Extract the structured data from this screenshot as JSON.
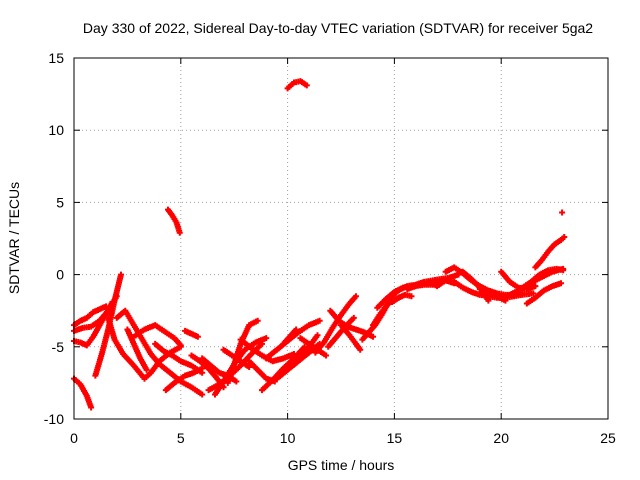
{
  "chart_data": {
    "type": "scatter",
    "title": "Day 330 of 2022, Sidereal Day-to-day VTEC variation (SDTVAR) for receiver 5ga2",
    "xlabel": "GPS time / hours",
    "ylabel": "SDTVAR / TECUs",
    "xlim": [
      0,
      25
    ],
    "ylim": [
      -10,
      15
    ],
    "xticks": [
      0,
      5,
      10,
      15,
      20,
      25
    ],
    "yticks": [
      -10,
      -5,
      0,
      5,
      10,
      15
    ],
    "grid": true,
    "marker": "+",
    "color": "#ff0000",
    "segments": [
      {
        "x": [
          0.0,
          0.3,
          0.6,
          0.8
        ],
        "y": [
          -7.2,
          -7.6,
          -8.4,
          -9.2
        ]
      },
      {
        "x": [
          0.0,
          0.3,
          0.6,
          0.9,
          1.2,
          1.5
        ],
        "y": [
          -3.5,
          -3.2,
          -3.0,
          -2.6,
          -2.4,
          -2.2
        ]
      },
      {
        "x": [
          0.0,
          0.3,
          0.6,
          0.9,
          1.2,
          1.5,
          1.8
        ],
        "y": [
          -4.6,
          -4.7,
          -4.9,
          -4.3,
          -3.5,
          -2.7,
          -1.9
        ]
      },
      {
        "x": [
          0.0,
          0.4,
          0.8,
          1.2,
          1.6,
          2.0
        ],
        "y": [
          -3.9,
          -3.7,
          -3.6,
          -3.2,
          -2.5,
          -1.5
        ]
      },
      {
        "x": [
          1.0,
          1.3,
          1.6,
          1.9,
          2.2
        ],
        "y": [
          -7.0,
          -5.5,
          -3.8,
          -1.8,
          0.0
        ]
      },
      {
        "x": [
          1.6,
          1.9,
          2.3,
          2.8,
          3.3
        ],
        "y": [
          -3.0,
          -4.5,
          -5.5,
          -6.3,
          -7.2
        ]
      },
      {
        "x": [
          2.0,
          2.4,
          2.8,
          3.2,
          3.6,
          4.0,
          4.5,
          5.0,
          5.5,
          6.0
        ],
        "y": [
          -3.0,
          -2.5,
          -3.5,
          -4.5,
          -5.5,
          -6.2,
          -6.8,
          -7.4,
          -7.8,
          -8.3
        ]
      },
      {
        "x": [
          2.5,
          2.8,
          3.1,
          3.4
        ],
        "y": [
          -3.8,
          -4.8,
          -5.8,
          -6.6
        ]
      },
      {
        "x": [
          2.8,
          3.3,
          3.8,
          4.2,
          4.7,
          5.0
        ],
        "y": [
          -4.3,
          -3.8,
          -3.5,
          -3.9,
          -4.4,
          -4.9
        ]
      },
      {
        "x": [
          3.3,
          3.6,
          4.0,
          4.5,
          5.0
        ],
        "y": [
          -7.2,
          -6.8,
          -6.0,
          -5.4,
          -5.0
        ]
      },
      {
        "x": [
          3.8,
          4.2,
          4.6,
          5.0,
          5.5,
          6.0
        ],
        "y": [
          -4.8,
          -5.3,
          -5.6,
          -6.0,
          -6.3,
          -6.8
        ]
      },
      {
        "x": [
          4.4,
          4.6,
          4.8,
          4.95
        ],
        "y": [
          4.5,
          4.1,
          3.6,
          2.9
        ]
      },
      {
        "x": [
          4.3,
          4.7,
          5.2,
          5.6,
          6.0
        ],
        "y": [
          -8.0,
          -7.5,
          -7.0,
          -6.8,
          -6.5
        ]
      },
      {
        "x": [
          5.2,
          5.5,
          5.8
        ],
        "y": [
          -3.9,
          -4.1,
          -4.3
        ]
      },
      {
        "x": [
          5.5,
          5.9,
          6.3,
          6.7,
          7.0
        ],
        "y": [
          -5.6,
          -6.0,
          -6.5,
          -7.2,
          -7.8
        ]
      },
      {
        "x": [
          6.0,
          6.4,
          6.8,
          7.2,
          7.6
        ],
        "y": [
          -5.8,
          -6.3,
          -6.8,
          -7.0,
          -7.4
        ]
      },
      {
        "x": [
          6.3,
          6.8,
          7.3,
          7.8,
          8.3,
          8.8
        ],
        "y": [
          -8.0,
          -7.6,
          -7.0,
          -6.3,
          -5.5,
          -4.8
        ]
      },
      {
        "x": [
          6.6,
          7.0,
          7.5,
          8.0,
          8.5,
          9.0
        ],
        "y": [
          -8.3,
          -7.4,
          -6.2,
          -5.2,
          -4.7,
          -4.4
        ]
      },
      {
        "x": [
          7.0,
          7.4,
          7.8,
          8.2
        ],
        "y": [
          -5.2,
          -5.6,
          -6.0,
          -6.4
        ]
      },
      {
        "x": [
          7.2,
          7.5,
          7.8,
          8.2,
          8.6
        ],
        "y": [
          -7.5,
          -6.2,
          -4.8,
          -3.5,
          -3.2
        ]
      },
      {
        "x": [
          7.8,
          8.3,
          8.8,
          9.3,
          9.8,
          10.3
        ],
        "y": [
          -4.5,
          -5.1,
          -5.6,
          -6.0,
          -5.8,
          -5.5
        ]
      },
      {
        "x": [
          8.2,
          8.6,
          9.0,
          9.4
        ],
        "y": [
          -6.0,
          -6.6,
          -7.2,
          -7.4
        ]
      },
      {
        "x": [
          8.8,
          9.3,
          9.8,
          10.3,
          10.8
        ],
        "y": [
          -8.0,
          -7.3,
          -6.5,
          -5.8,
          -5.0
        ]
      },
      {
        "x": [
          9.0,
          9.5,
          10.0,
          10.5,
          11.0,
          11.5
        ],
        "y": [
          -5.8,
          -5.2,
          -4.6,
          -4.0,
          -3.5,
          -3.2
        ]
      },
      {
        "x": [
          9.5,
          10.0,
          10.5,
          11.0,
          11.5
        ],
        "y": [
          -7.2,
          -6.6,
          -6.0,
          -5.4,
          -4.8
        ]
      },
      {
        "x": [
          9.8,
          10.1,
          10.4
        ],
        "y": [
          -4.8,
          -4.3,
          -3.8
        ]
      },
      {
        "x": [
          10.2,
          10.6,
          11.0,
          11.4
        ],
        "y": [
          -6.2,
          -5.6,
          -5.0,
          -4.2
        ]
      },
      {
        "x": [
          10.0,
          10.3,
          10.6,
          10.9
        ],
        "y": [
          12.9,
          13.3,
          13.4,
          13.1
        ]
      },
      {
        "x": [
          10.6,
          11.0,
          11.4,
          11.8
        ],
        "y": [
          -4.4,
          -4.8,
          -5.2,
          -5.6
        ]
      },
      {
        "x": [
          11.3,
          11.7,
          12.1,
          12.5,
          12.9,
          13.2
        ],
        "y": [
          -5.4,
          -4.7,
          -3.7,
          -2.8,
          -2.0,
          -1.5
        ]
      },
      {
        "x": [
          11.9,
          12.3,
          12.7,
          13.1
        ],
        "y": [
          -5.0,
          -4.3,
          -3.6,
          -3.0
        ]
      },
      {
        "x": [
          12.0,
          12.4,
          12.8,
          13.2,
          13.6,
          14.0
        ],
        "y": [
          -2.5,
          -3.2,
          -3.6,
          -3.8,
          -4.0,
          -4.3
        ]
      },
      {
        "x": [
          12.5,
          12.9,
          13.2,
          13.4
        ],
        "y": [
          -3.5,
          -4.2,
          -4.8,
          -5.2
        ]
      },
      {
        "x": [
          13.5,
          13.8,
          14.1,
          14.4,
          14.7,
          15.0,
          15.3,
          15.6,
          16.0,
          16.4,
          16.8,
          17.2,
          17.6,
          18.0
        ],
        "y": [
          -4.5,
          -4.0,
          -3.5,
          -2.8,
          -2.0,
          -1.3,
          -1.0,
          -0.8,
          -0.7,
          -0.5,
          -0.4,
          -0.3,
          -0.2,
          0.0
        ]
      },
      {
        "x": [
          14.2,
          14.6,
          15.0,
          15.4,
          15.8,
          16.2,
          16.6,
          17.0,
          17.5
        ],
        "y": [
          -2.3,
          -1.7,
          -1.2,
          -0.9,
          -0.8,
          -0.7,
          -0.6,
          -0.5,
          -0.4
        ]
      },
      {
        "x": [
          14.0,
          14.3,
          14.6,
          14.9,
          15.2
        ],
        "y": [
          -3.5,
          -2.8,
          -2.2,
          -1.8,
          -1.6
        ]
      },
      {
        "x": [
          14.9,
          15.2,
          15.5,
          15.8
        ],
        "y": [
          -1.9,
          -1.6,
          -1.4,
          -1.5
        ]
      },
      {
        "x": [
          15.6,
          16.0,
          16.4,
          16.8
        ],
        "y": [
          -1.0,
          -0.8,
          -0.7,
          -0.7
        ]
      },
      {
        "x": [
          16.6,
          17.0,
          17.4,
          17.8
        ],
        "y": [
          -0.5,
          -0.8,
          -0.4,
          -0.6
        ]
      },
      {
        "x": [
          17.4,
          17.8,
          18.2,
          18.6,
          19.0,
          19.4,
          19.8,
          20.2,
          20.6,
          21.0
        ],
        "y": [
          0.2,
          0.5,
          0.1,
          -0.4,
          -0.8,
          -1.1,
          -1.3,
          -1.4,
          -1.4,
          -1.3
        ]
      },
      {
        "x": [
          17.8,
          18.2,
          18.6,
          19.0,
          19.4,
          19.8,
          20.2,
          20.6,
          21.0,
          21.5
        ],
        "y": [
          -0.5,
          -0.9,
          -1.2,
          -1.4,
          -1.5,
          -1.6,
          -1.6,
          -1.5,
          -1.4,
          -1.3
        ]
      },
      {
        "x": [
          18.2,
          18.6,
          19.0,
          19.4
        ],
        "y": [
          0.2,
          -0.3,
          -0.9,
          -1.8
        ]
      },
      {
        "x": [
          19.0,
          19.4,
          19.8,
          20.2
        ],
        "y": [
          -1.0,
          -1.2,
          -1.5,
          -1.8
        ]
      },
      {
        "x": [
          20.0,
          20.4,
          20.8,
          21.2,
          21.6
        ],
        "y": [
          0.2,
          -0.5,
          -0.9,
          -1.0,
          -0.8
        ]
      },
      {
        "x": [
          20.4,
          20.8,
          21.2,
          21.6,
          22.0,
          22.4,
          22.9
        ],
        "y": [
          -1.4,
          -1.1,
          -0.8,
          -0.4,
          -0.1,
          0.2,
          0.4
        ]
      },
      {
        "x": [
          21.0,
          21.4,
          21.8,
          22.2,
          22.6,
          22.9
        ],
        "y": [
          -0.9,
          -0.5,
          0.0,
          0.3,
          0.4,
          0.3
        ]
      },
      {
        "x": [
          21.2,
          21.6,
          22.0,
          22.4,
          22.8
        ],
        "y": [
          -2.0,
          -1.6,
          -1.1,
          -0.8,
          -0.6
        ]
      },
      {
        "x": [
          21.6,
          21.9,
          22.2,
          22.5,
          22.8,
          22.95
        ],
        "y": [
          0.5,
          1.0,
          1.6,
          2.1,
          2.4,
          2.6
        ]
      },
      {
        "x": [
          22.85
        ],
        "y": [
          4.3
        ]
      }
    ]
  }
}
